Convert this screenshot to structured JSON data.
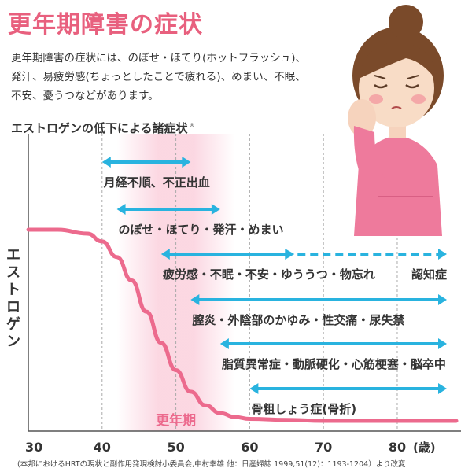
{
  "page": {
    "title": "更年期障害の症状",
    "intro_lines": [
      "更年期障害の症状には、のぼせ・ほてり(ホットフラッシュ)、",
      "発汗、易疲労感(ちょっとしたことで疲れる)、めまい、不眠、",
      "不安、憂うつなどがあります。"
    ],
    "subtitle": "エストロゲンの低下による諸症状",
    "subtitle_note": "※",
    "source": "(本邦におけるHRTの現状と副作用発現検討小委員会,中村幸雄 他：日産婦誌 1999,51(12)：1193-1204）より改変"
  },
  "colors": {
    "title_pink": "#e8607e",
    "curve_pink": "#ec6a8d",
    "arrow_cyan": "#29b3df",
    "band_pink": "#fbd3df",
    "text_dark": "#333333"
  },
  "illustration": {
    "icon": "tired-woman-icon"
  },
  "chart_data": {
    "type": "line",
    "ylabel": "エストロゲン",
    "x_ticks": [
      30,
      40,
      50,
      60,
      70,
      80
    ],
    "x_unit_label": "(歳)",
    "xlim": [
      30,
      88
    ],
    "gridlines_x": [
      40,
      50,
      60,
      70,
      80
    ],
    "highlight_band": {
      "label": "更年期",
      "from": 45,
      "to": 55
    },
    "estrogen_curve": {
      "x": [
        30,
        34,
        38,
        40,
        42,
        44,
        46,
        48,
        50,
        52,
        54,
        56,
        58,
        60,
        65,
        70,
        80,
        88
      ],
      "y": [
        1.0,
        1.0,
        0.98,
        0.94,
        0.86,
        0.74,
        0.58,
        0.42,
        0.28,
        0.17,
        0.1,
        0.06,
        0.04,
        0.03,
        0.025,
        0.02,
        0.02,
        0.02
      ]
    },
    "symptoms": [
      {
        "label": "月経不順、不正出血",
        "from": 40,
        "to": 52
      },
      {
        "label": "のぼせ・ほてり・発汗・めまい",
        "from": 42,
        "to": 56
      },
      {
        "label": "疲労感・不眠・不安・ゆううつ・物忘れ",
        "from": 48,
        "to": 65,
        "continuation": {
          "label": "認知症",
          "from": 65,
          "to": 88,
          "style": "dashed"
        }
      },
      {
        "label": "膣炎・外陰部のかゆみ・性交痛・尿失禁",
        "from": 52,
        "to": 88
      },
      {
        "label": "脂質異常症・動脈硬化・心筋梗塞・脳卒中",
        "from": 56,
        "to": 88
      },
      {
        "label": "骨粗しょう症(骨折)",
        "from": 60,
        "to": 88
      }
    ]
  }
}
